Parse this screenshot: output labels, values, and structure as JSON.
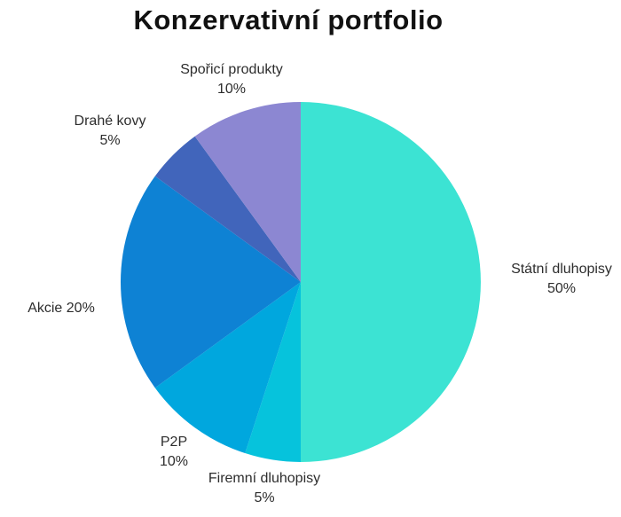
{
  "title": "Konzervativní portfolio",
  "chart_data": {
    "type": "pie",
    "title": "Konzervativní portfolio",
    "start_angle_deg": 0,
    "direction": "clockwise",
    "legend_position": "none",
    "labels_outside": true,
    "background": "#ffffff",
    "categories": [
      "Státní dluhopisy",
      "Firemní dluhopisy",
      "P2P",
      "Akcie",
      "Drahé kovy",
      "Spořicí produkty"
    ],
    "values": [
      50,
      5,
      10,
      20,
      5,
      10
    ],
    "slices": [
      {
        "label": "Státní dluhopisy",
        "value": 50,
        "pct_label": "50%",
        "color": "#3ce3d3"
      },
      {
        "label": "Firemní dluhopisy",
        "value": 5,
        "pct_label": "5%",
        "color": "#06c3dc"
      },
      {
        "label": "P2P",
        "value": 10,
        "pct_label": "10%",
        "color": "#00a7de"
      },
      {
        "label": "Akcie",
        "value": 20,
        "pct_label": "20%",
        "color": "#0e82d4"
      },
      {
        "label": "Drahé kovy",
        "value": 5,
        "pct_label": "5%",
        "color": "#4165bb"
      },
      {
        "label": "Spořicí produkty",
        "value": 10,
        "pct_label": "10%",
        "color": "#8c87d2"
      }
    ]
  },
  "labels": {
    "sporici": {
      "line1": "Spořicí produkty",
      "line2": "10%"
    },
    "drahe": {
      "line1": "Drahé kovy",
      "line2": "5%"
    },
    "statni": {
      "line1": "Státní dluhopisy",
      "line2": "50%"
    },
    "akcie": {
      "line1": "Akcie 20%"
    },
    "p2p": {
      "line1": "P2P",
      "line2": "10%"
    },
    "firemni": {
      "line1": "Firemní dluhopisy",
      "line2": "5%"
    }
  }
}
